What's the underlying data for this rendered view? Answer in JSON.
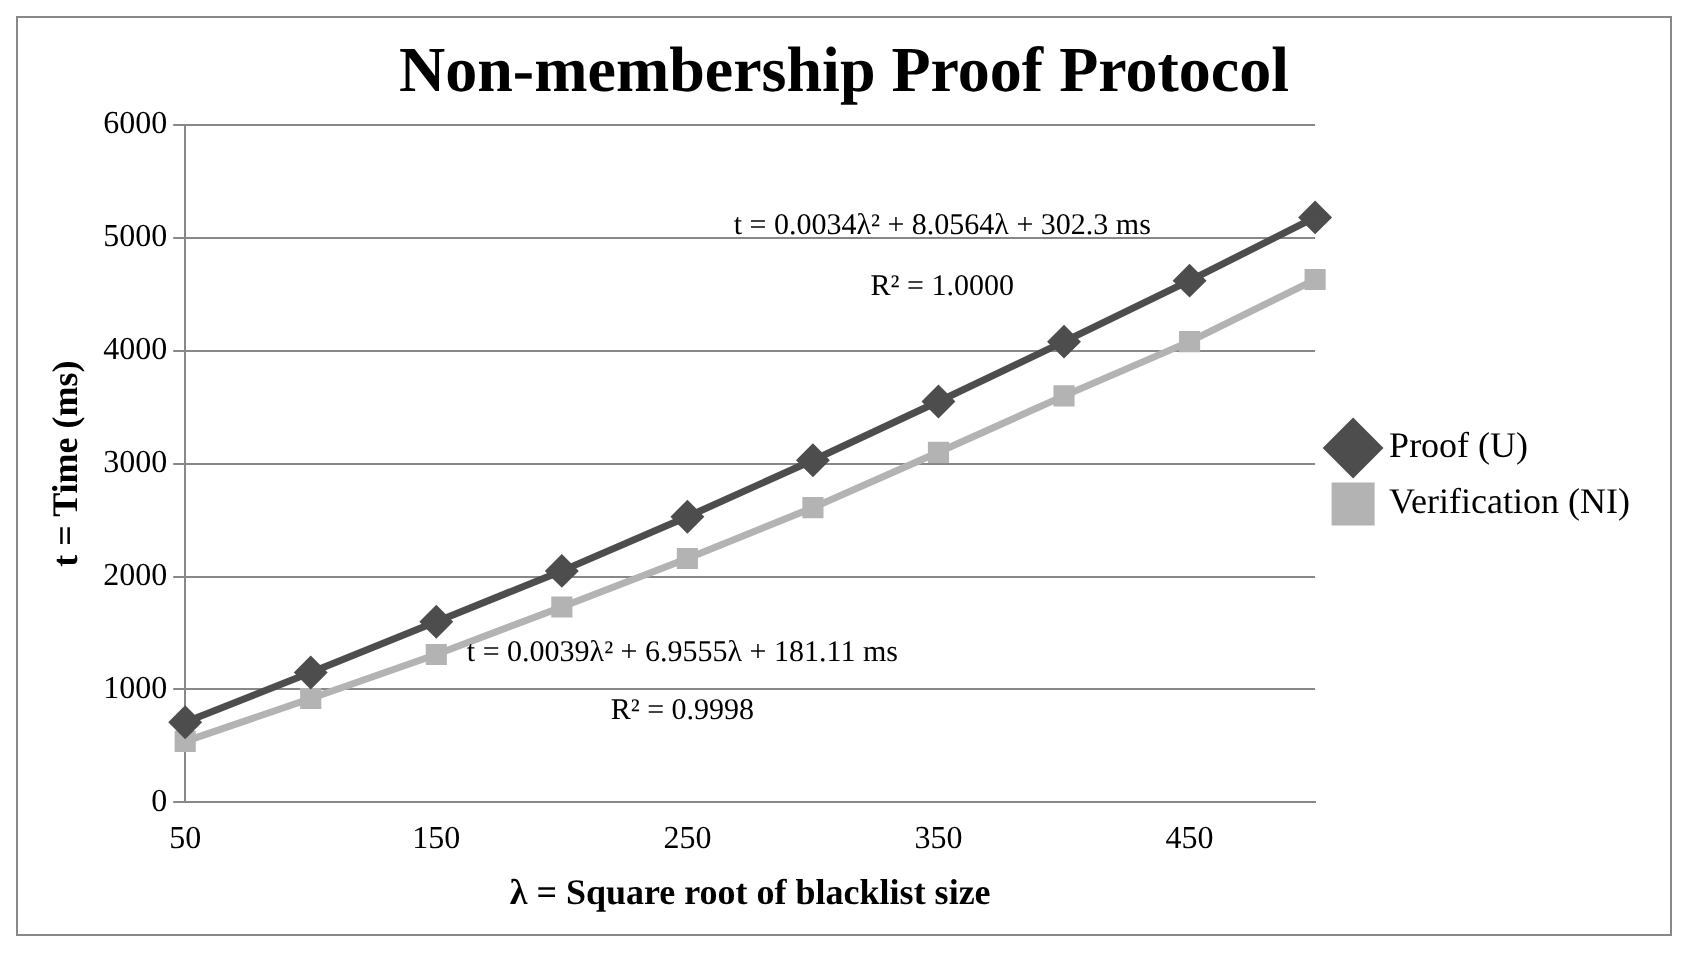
{
  "chart_data": {
    "type": "line",
    "title": "Non-membership Proof Protocol",
    "xlabel": "λ = Square root of blacklist size",
    "ylabel": "t = Time (ms)",
    "categories": [
      "50",
      null,
      "150",
      null,
      "250",
      null,
      "350",
      null,
      "450",
      null
    ],
    "series": [
      {
        "name": "Proof (U)",
        "color": "#4d4d4d",
        "marker": "diamond",
        "values": [
          710,
          1150,
          1600,
          2050,
          2530,
          3030,
          3550,
          4080,
          4620,
          5180
        ]
      },
      {
        "name": "Verification (NI)",
        "color": "#b3b3b3",
        "marker": "square",
        "values": [
          540,
          920,
          1310,
          1730,
          2160,
          2610,
          3100,
          3600,
          4080,
          4630
        ]
      }
    ],
    "ylim": [
      0,
      6000
    ],
    "yticks": [
      0,
      1000,
      2000,
      3000,
      4000,
      5000,
      6000
    ],
    "grid": "y",
    "legend": "right",
    "line_style": "solid",
    "annotations": [
      "t = 0.0034λ² + 8.0564λ + 302.3 ms",
      "R² = 1.0000",
      "t = 0.0039λ² + 6.9555λ + 181.11 ms",
      "R² = 0.9998"
    ]
  }
}
